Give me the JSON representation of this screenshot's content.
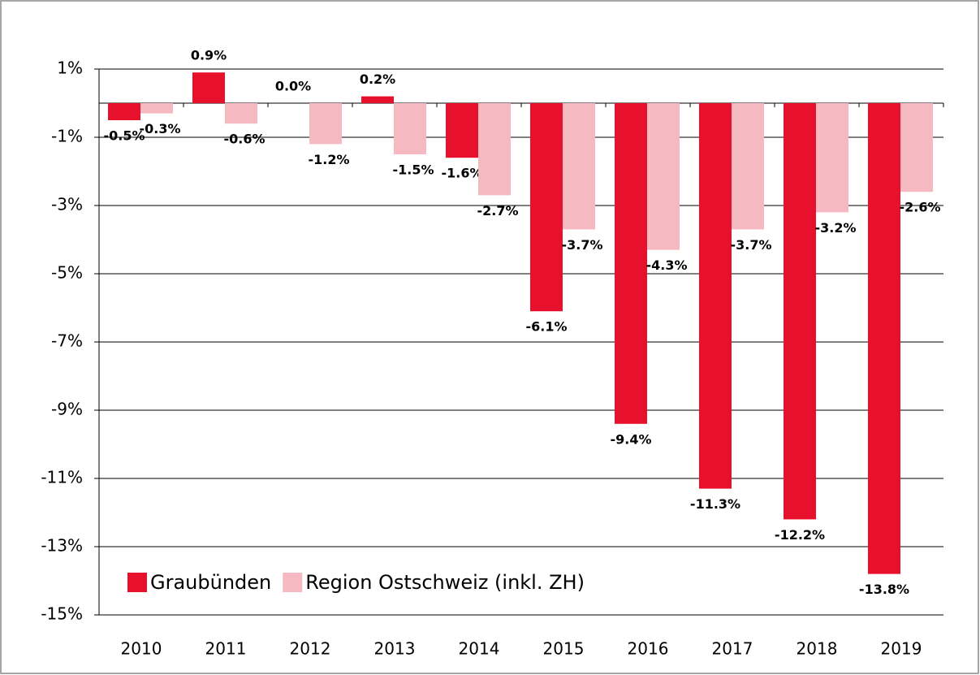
{
  "chart_data": {
    "type": "bar",
    "categories": [
      "2010",
      "2011",
      "2012",
      "2013",
      "2014",
      "2015",
      "2016",
      "2017",
      "2018",
      "2019"
    ],
    "series": [
      {
        "name": "Graubünden",
        "color": "#e8112d",
        "values": [
          -0.5,
          0.9,
          0.0,
          0.2,
          -1.6,
          -6.1,
          -9.4,
          -11.3,
          -12.2,
          -13.8
        ],
        "value_labels": [
          "-0.5%",
          "0.9%",
          "0.0%",
          "0.2%",
          "-1.6%",
          "-6.1%",
          "-9.4%",
          "-11.3%",
          "-12.2%",
          "-13.8%"
        ]
      },
      {
        "name": "Region Ostschweiz (inkl. ZH)",
        "color": "#f7b9c1",
        "values": [
          -0.3,
          -0.6,
          -1.2,
          -1.5,
          -2.7,
          -3.7,
          -4.3,
          -3.7,
          -3.2,
          -2.6
        ],
        "value_labels": [
          "-0.3%",
          "-0.6%",
          "-1.2%",
          "-1.5%",
          "-2.7%",
          "-3.7%",
          "-4.3%",
          "-3.7%",
          "-3.2%",
          "-2.6%"
        ]
      }
    ],
    "ylim": [
      -15,
      1
    ],
    "yticks": [
      {
        "value": 1,
        "label": "1%"
      },
      {
        "value": -1,
        "label": "-1%"
      },
      {
        "value": -3,
        "label": "-3%"
      },
      {
        "value": -5,
        "label": "-5%"
      },
      {
        "value": -7,
        "label": "-7%"
      },
      {
        "value": -9,
        "label": "-9%"
      },
      {
        "value": -11,
        "label": "-11%"
      },
      {
        "value": -13,
        "label": "-13%"
      },
      {
        "value": -15,
        "label": "-15%"
      }
    ],
    "grid": true,
    "legend": "lower left"
  }
}
